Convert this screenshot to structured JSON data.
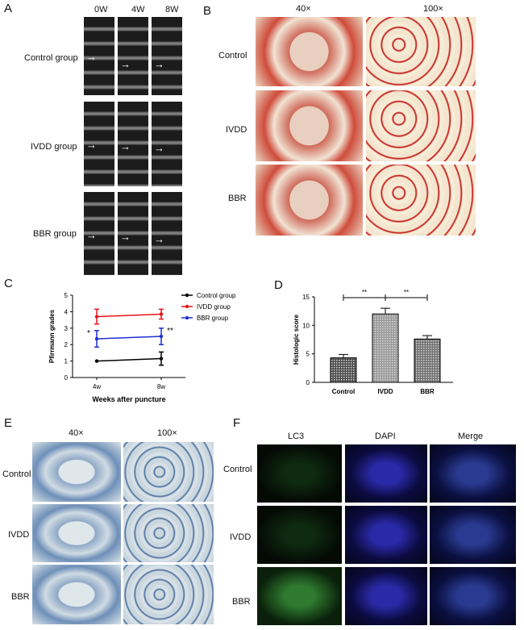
{
  "panels": {
    "A": {
      "letter": "A",
      "columns": [
        "0W",
        "4W",
        "8W"
      ],
      "rows": [
        "Control group",
        "IVDD group",
        "BBR group"
      ],
      "arrow": "→"
    },
    "B": {
      "letter": "B",
      "columns": [
        "40×",
        "100×"
      ],
      "rows": [
        "Control",
        "IVDD",
        "BBR"
      ]
    },
    "C": {
      "letter": "C"
    },
    "D": {
      "letter": "D"
    },
    "E": {
      "letter": "E",
      "columns": [
        "40×",
        "100×"
      ],
      "rows": [
        "Control",
        "IVDD",
        "BBR"
      ]
    },
    "F": {
      "letter": "F",
      "columns": [
        "LC3",
        "DAPI",
        "Merge"
      ],
      "rows": [
        "Control",
        "IVDD",
        "BBR"
      ]
    }
  },
  "chart_data": [
    {
      "type": "line",
      "panel": "C",
      "xlabel": "Weeks after puncture",
      "ylabel": "Pfirrmann grades",
      "x": [
        "4w",
        "8w"
      ],
      "ylim": [
        0,
        5
      ],
      "yticks": [
        0,
        1,
        2,
        3,
        4,
        5
      ],
      "legend_position": "top-right",
      "series": [
        {
          "name": "Control group",
          "color": "#000000",
          "values": [
            1.0,
            1.15
          ],
          "errors": [
            0.0,
            0.4
          ]
        },
        {
          "name": "IVDD group",
          "color": "#e8141b",
          "values": [
            3.7,
            3.85
          ],
          "errors": [
            0.45,
            0.3
          ]
        },
        {
          "name": "BBR group",
          "color": "#1f2fd0",
          "values": [
            2.35,
            2.5
          ],
          "errors": [
            0.5,
            0.5
          ]
        }
      ],
      "annotations": [
        {
          "text": "*",
          "x": "4w"
        },
        {
          "text": "**",
          "x": "8w"
        }
      ]
    },
    {
      "type": "bar",
      "panel": "D",
      "ylabel": "Histologic score",
      "categories": [
        "Control",
        "IVDD",
        "BBR"
      ],
      "values": [
        4.3,
        12.0,
        7.6
      ],
      "errors": [
        0.6,
        1.0,
        0.6
      ],
      "ylim": [
        0,
        15
      ],
      "yticks": [
        0,
        5,
        10,
        15
      ],
      "significance": [
        {
          "from": "Control",
          "to": "IVDD",
          "label": "**"
        },
        {
          "from": "IVDD",
          "to": "BBR",
          "label": "**"
        }
      ]
    }
  ]
}
